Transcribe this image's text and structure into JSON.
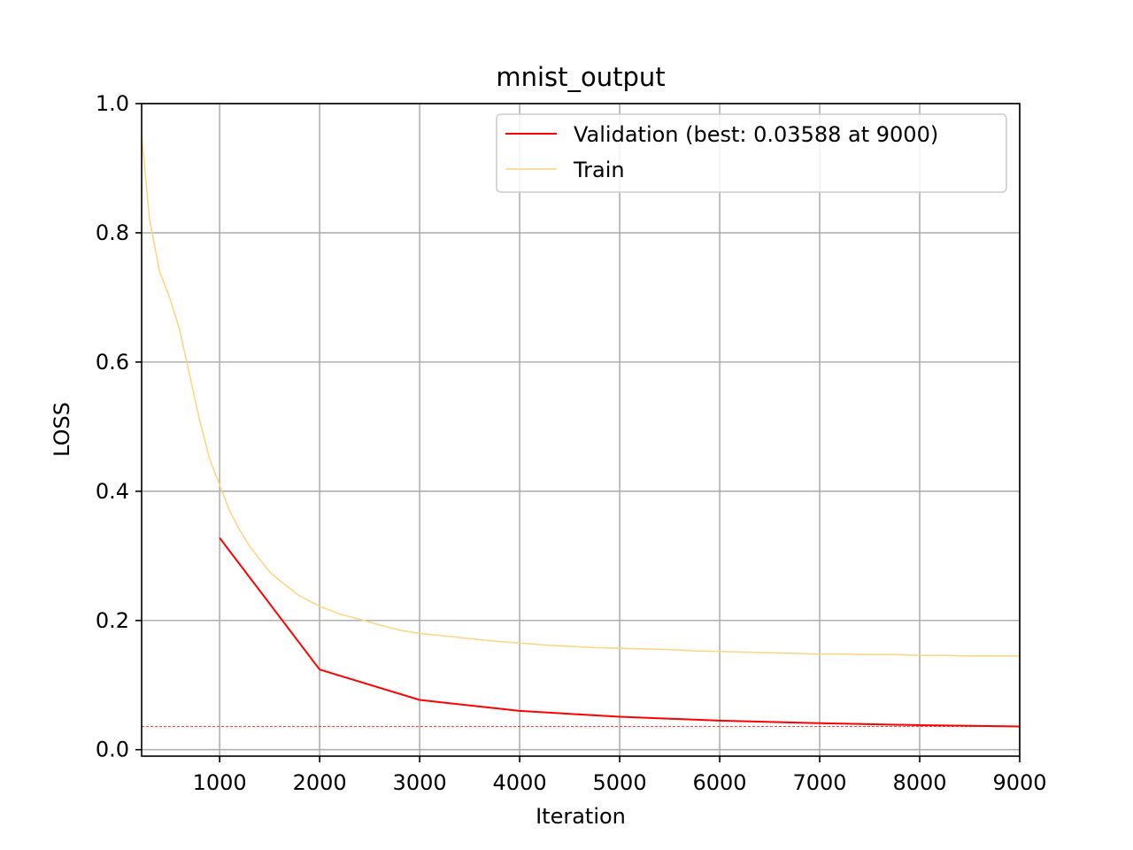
{
  "chart_data": {
    "type": "line",
    "title": "mnist_output",
    "xlabel": "Iteration",
    "ylabel": "LOSS",
    "xlim": [
      220,
      9000
    ],
    "ylim": [
      -0.01,
      1.0
    ],
    "xticks": [
      1000,
      2000,
      3000,
      4000,
      5000,
      6000,
      7000,
      8000,
      9000
    ],
    "xtick_labels": [
      "1000",
      "2000",
      "3000",
      "4000",
      "5000",
      "6000",
      "7000",
      "8000",
      "9000"
    ],
    "yticks": [
      0.0,
      0.2,
      0.4,
      0.6,
      0.8,
      1.0
    ],
    "ytick_labels": [
      "0.0",
      "0.2",
      "0.4",
      "0.6",
      "0.8",
      "1.0"
    ],
    "grid": true,
    "legend_position": "top-right",
    "series": [
      {
        "name": "Validation (best: 0.03588 at 9000)",
        "color": "#ff0000",
        "x": [
          1000,
          2000,
          3000,
          4000,
          5000,
          6000,
          7000,
          8000,
          9000
        ],
        "y": [
          0.328,
          0.124,
          0.077,
          0.06,
          0.051,
          0.045,
          0.041,
          0.038,
          0.0359
        ]
      },
      {
        "name": "Train",
        "color": "#fdd47f",
        "x": [
          220,
          300,
          400,
          500,
          600,
          700,
          800,
          900,
          1000,
          1100,
          1200,
          1300,
          1400,
          1500,
          1600,
          1700,
          1800,
          1900,
          2000,
          2200,
          2400,
          2600,
          2800,
          3000,
          3250,
          3500,
          3750,
          4000,
          4250,
          4500,
          4750,
          5000,
          5250,
          5500,
          5750,
          6000,
          6250,
          6500,
          6750,
          7000,
          7250,
          7500,
          7750,
          8000,
          8250,
          8500,
          8750,
          9000
        ],
        "y": [
          0.95,
          0.82,
          0.74,
          0.7,
          0.65,
          0.58,
          0.51,
          0.45,
          0.41,
          0.37,
          0.34,
          0.315,
          0.295,
          0.275,
          0.262,
          0.25,
          0.238,
          0.23,
          0.222,
          0.21,
          0.202,
          0.193,
          0.185,
          0.18,
          0.176,
          0.172,
          0.168,
          0.165,
          0.162,
          0.16,
          0.158,
          0.157,
          0.156,
          0.155,
          0.153,
          0.152,
          0.151,
          0.15,
          0.149,
          0.148,
          0.148,
          0.147,
          0.147,
          0.146,
          0.146,
          0.145,
          0.145,
          0.145
        ]
      }
    ],
    "reference_lines": [
      {
        "orientation": "horizontal",
        "y": 0.03588,
        "color": "#ff0000",
        "style": "dashed"
      }
    ]
  }
}
